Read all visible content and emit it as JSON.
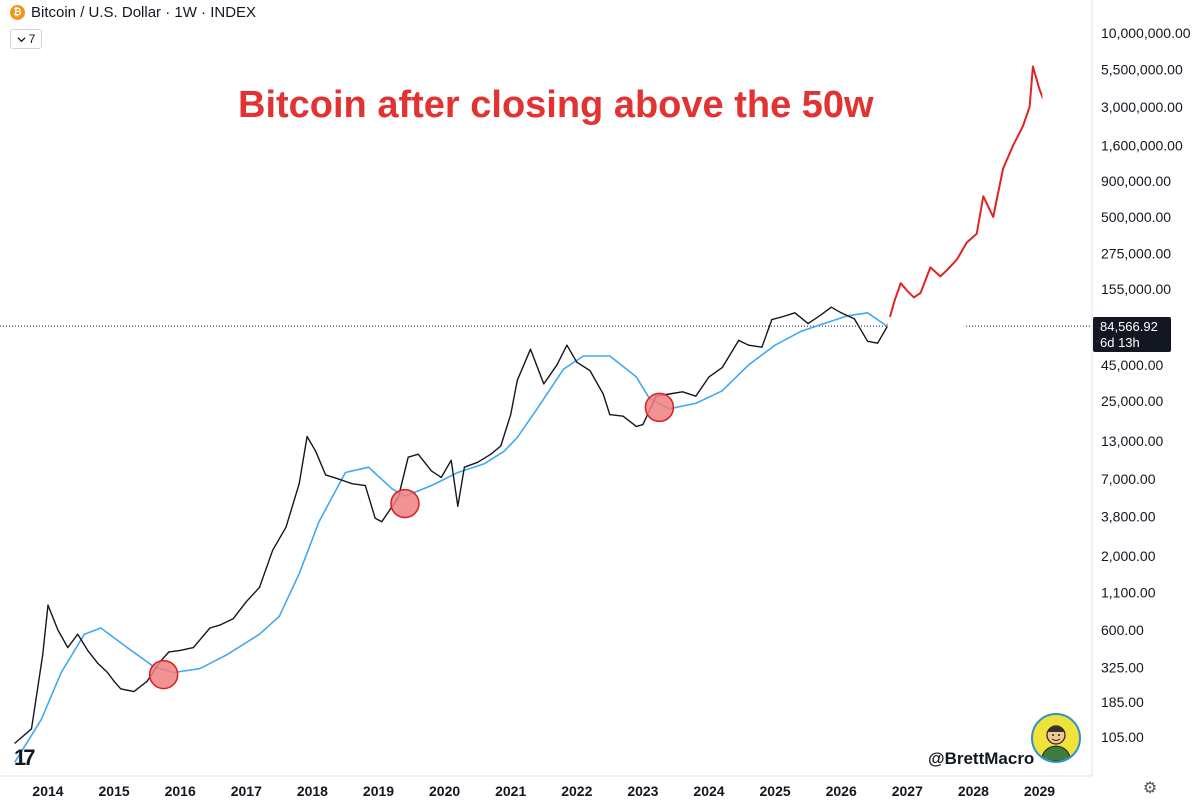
{
  "header": {
    "symbol_title": "Bitcoin / U.S. Dollar · 1W · INDEX",
    "indicator_count": "7",
    "logo_letter": "₿"
  },
  "annotation": {
    "headline": "Bitcoin after closing above the 50w"
  },
  "price_badge": {
    "price": "84,566.92",
    "countdown": "6d 13h"
  },
  "watermark": {
    "handle": "@BrettMacro",
    "tv_logo": "17"
  },
  "colors": {
    "price_line": "#131722",
    "ma_line": "#3fa9f5",
    "projection": "#e02424",
    "headline": "#e23232",
    "circle_fill": "#f08080",
    "circle_stroke": "#d61f1f"
  },
  "icons": [
    "bitcoin-logo-icon",
    "chevron-down-icon",
    "tradingview-logo-icon",
    "settings-gear-icon",
    "avatar-icon"
  ],
  "chart_data": {
    "type": "line",
    "title": "Bitcoin after closing above the 50w",
    "log_scale": true,
    "grid": false,
    "x_ticks": [
      "2014",
      "2015",
      "2016",
      "2017",
      "2018",
      "2019",
      "2020",
      "2021",
      "2022",
      "2023",
      "2024",
      "2025",
      "2026",
      "2027",
      "2028",
      "2029"
    ],
    "y_ticks": [
      {
        "value": 10000000,
        "label": "10,000,000.00"
      },
      {
        "value": 5500000,
        "label": "5,500,000.00"
      },
      {
        "value": 3000000,
        "label": "3,000,000.00"
      },
      {
        "value": 1600000,
        "label": "1,600,000.00"
      },
      {
        "value": 900000,
        "label": "900,000.00"
      },
      {
        "value": 500000,
        "label": "500,000.00"
      },
      {
        "value": 275000,
        "label": "275,000.00"
      },
      {
        "value": 155000,
        "label": "155,000.00"
      },
      {
        "value": 45000,
        "label": "45,000.00"
      },
      {
        "value": 25000,
        "label": "25,000.00"
      },
      {
        "value": 13000,
        "label": "13,000.00"
      },
      {
        "value": 7000,
        "label": "7,000.00"
      },
      {
        "value": 3800,
        "label": "3,800.00"
      },
      {
        "value": 2000,
        "label": "2,000.00"
      },
      {
        "value": 1100,
        "label": "1,100.00"
      },
      {
        "value": 600,
        "label": "600.00"
      },
      {
        "value": 325,
        "label": "325.00"
      },
      {
        "value": 185,
        "label": "185.00"
      },
      {
        "value": 105,
        "label": "105.00"
      }
    ],
    "current_price": 84566.92,
    "series": [
      {
        "x": [
          2013.5,
          2013.75,
          2013.92,
          2014.0,
          2014.15,
          2014.3,
          2014.45,
          2014.6,
          2014.75,
          2014.9,
          2015.0,
          2015.1,
          2015.3,
          2015.5,
          2015.7,
          2015.83,
          2016.0,
          2016.2,
          2016.45,
          2016.6,
          2016.8,
          2017.0,
          2017.2,
          2017.4,
          2017.6,
          2017.8,
          2017.92,
          2018.05,
          2018.2,
          2018.4,
          2018.6,
          2018.8,
          2018.95,
          2019.05,
          2019.3,
          2019.45,
          2019.6,
          2019.8,
          2019.95,
          2020.1,
          2020.2,
          2020.3,
          2020.5,
          2020.7,
          2020.85,
          2021.0,
          2021.1,
          2021.3,
          2021.5,
          2021.7,
          2021.85,
          2022.0,
          2022.2,
          2022.4,
          2022.5,
          2022.7,
          2022.9,
          2023.0,
          2023.2,
          2023.4,
          2023.6,
          2023.8,
          2024.0,
          2024.2,
          2024.45,
          2024.6,
          2024.8,
          2024.95,
          2025.1,
          2025.3,
          2025.5,
          2025.7,
          2025.85,
          2026.0,
          2026.2,
          2026.4,
          2026.55,
          2026.7
        ],
        "values": [
          95,
          120,
          400,
          900,
          600,
          450,
          560,
          430,
          350,
          300,
          260,
          230,
          220,
          260,
          360,
          420,
          430,
          450,
          620,
          650,
          720,
          950,
          1200,
          2200,
          3200,
          6500,
          14000,
          11000,
          7500,
          7000,
          6500,
          6300,
          3700,
          3500,
          5200,
          10000,
          10500,
          8000,
          7200,
          9500,
          4500,
          8500,
          9200,
          10500,
          12000,
          20000,
          35000,
          58000,
          33000,
          45000,
          62000,
          47000,
          41000,
          28000,
          20000,
          19500,
          16500,
          17000,
          27000,
          28000,
          29000,
          27000,
          37000,
          43000,
          67000,
          62000,
          60000,
          94000,
          98000,
          105000,
          88000,
          102000,
          115000,
          105000,
          95000,
          66000,
          64000,
          84566.92
        ],
        "name": ""
      },
      {
        "x": [
          2013.5,
          2013.9,
          2014.2,
          2014.55,
          2014.8,
          2015.2,
          2015.6,
          2015.9,
          2016.3,
          2016.7,
          2017.2,
          2017.5,
          2017.8,
          2018.1,
          2018.5,
          2018.85,
          2019.2,
          2019.4,
          2019.8,
          2020.2,
          2020.6,
          2020.9,
          2021.1,
          2021.4,
          2021.8,
          2022.1,
          2022.5,
          2022.9,
          2023.1,
          2023.4,
          2023.8,
          2024.2,
          2024.6,
          2025.0,
          2025.4,
          2025.8,
          2026.1,
          2026.4,
          2026.7
        ],
        "values": [
          70,
          140,
          300,
          560,
          620,
          450,
          330,
          300,
          320,
          400,
          560,
          750,
          1500,
          3500,
          7800,
          8500,
          6000,
          5300,
          6300,
          7800,
          9000,
          11000,
          13800,
          22000,
          42000,
          52000,
          52000,
          37000,
          26000,
          22000,
          24000,
          29500,
          45000,
          62000,
          78000,
          90000,
          100000,
          105000,
          84000
        ],
        "name": ""
      },
      {
        "x": [
          2026.7,
          2026.8,
          2026.9,
          2027.0,
          2027.1,
          2027.2,
          2027.35,
          2027.5,
          2027.6,
          2027.75,
          2027.9,
          2028.05,
          2028.15,
          2028.3,
          2028.45,
          2028.6,
          2028.75,
          2028.85,
          2028.9,
          2029.0,
          2029.1,
          2029.2,
          2029.35
        ],
        "values": [
          84566.92,
          125000,
          170000,
          150000,
          135000,
          145000,
          220000,
          190000,
          210000,
          250000,
          330000,
          380000,
          700000,
          500000,
          1100000,
          1600000,
          2200000,
          3000000,
          5800000,
          4000000,
          3000000,
          3400000,
          2300000
        ],
        "name": ""
      }
    ],
    "highlights": [
      {
        "x": 2015.75,
        "y": 290
      },
      {
        "x": 2019.4,
        "y": 4700
      },
      {
        "x": 2023.25,
        "y": 22500
      }
    ]
  }
}
